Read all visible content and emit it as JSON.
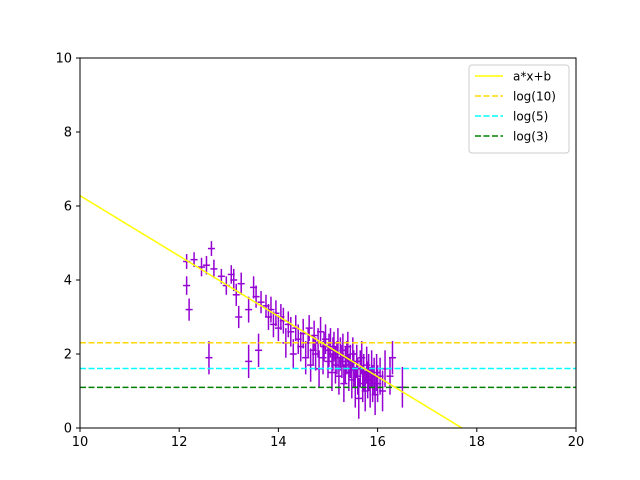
{
  "chart_data": {
    "type": "scatter",
    "title": "",
    "xlabel": "",
    "ylabel": "",
    "xlim": [
      10,
      20
    ],
    "ylim": [
      0,
      10
    ],
    "grid": false,
    "legend_position": "top-right",
    "x_ticks": [
      "10",
      "12",
      "14",
      "16",
      "18",
      "20"
    ],
    "y_ticks": [
      "0",
      "2",
      "4",
      "6",
      "8",
      "10"
    ],
    "series": [
      {
        "name": "a*x+b",
        "kind": "line",
        "style": "solid",
        "color": "#ffff00",
        "x": [
          10,
          17.7
        ],
        "y": [
          6.28,
          0
        ]
      },
      {
        "name": "log(10)",
        "kind": "hline",
        "style": "dashed",
        "color": "#ffd700",
        "y": 2.3026
      },
      {
        "name": "log(5)",
        "kind": "hline",
        "style": "dashed",
        "color": "#00ffff",
        "y": 1.6094
      },
      {
        "name": "log(3)",
        "kind": "hline",
        "style": "dashed",
        "color": "#008000",
        "y": 1.0986
      },
      {
        "kind": "errorbar",
        "color": "#9400d3",
        "points": [
          {
            "x": 12.15,
            "y": 4.5,
            "yerr": 0.2
          },
          {
            "x": 12.15,
            "y": 3.85,
            "yerr": 0.25
          },
          {
            "x": 12.2,
            "y": 3.2,
            "yerr": 0.3
          },
          {
            "x": 12.3,
            "y": 4.55,
            "yerr": 0.2
          },
          {
            "x": 12.45,
            "y": 4.35,
            "yerr": 0.25
          },
          {
            "x": 12.55,
            "y": 4.4,
            "yerr": 0.25
          },
          {
            "x": 12.6,
            "y": 1.9,
            "yerr": 0.45
          },
          {
            "x": 12.65,
            "y": 4.85,
            "yerr": 0.2
          },
          {
            "x": 12.7,
            "y": 4.3,
            "yerr": 0.25
          },
          {
            "x": 12.85,
            "y": 4.1,
            "yerr": 0.2
          },
          {
            "x": 12.95,
            "y": 3.85,
            "yerr": 0.25
          },
          {
            "x": 13.05,
            "y": 4.15,
            "yerr": 0.25
          },
          {
            "x": 13.1,
            "y": 4.0,
            "yerr": 0.3
          },
          {
            "x": 13.15,
            "y": 3.6,
            "yerr": 0.3
          },
          {
            "x": 13.2,
            "y": 3.0,
            "yerr": 0.3
          },
          {
            "x": 13.25,
            "y": 3.9,
            "yerr": 0.3
          },
          {
            "x": 13.4,
            "y": 3.2,
            "yerr": 0.35
          },
          {
            "x": 13.4,
            "y": 1.8,
            "yerr": 0.45
          },
          {
            "x": 13.5,
            "y": 3.8,
            "yerr": 0.3
          },
          {
            "x": 13.55,
            "y": 3.55,
            "yerr": 0.3
          },
          {
            "x": 13.6,
            "y": 2.1,
            "yerr": 0.45
          },
          {
            "x": 13.65,
            "y": 3.4,
            "yerr": 0.3
          },
          {
            "x": 13.75,
            "y": 3.3,
            "yerr": 0.3
          },
          {
            "x": 13.8,
            "y": 3.0,
            "yerr": 0.35
          },
          {
            "x": 13.85,
            "y": 3.2,
            "yerr": 0.35
          },
          {
            "x": 13.9,
            "y": 2.8,
            "yerr": 0.35
          },
          {
            "x": 13.95,
            "y": 3.1,
            "yerr": 0.35
          },
          {
            "x": 14.0,
            "y": 2.7,
            "yerr": 0.35
          },
          {
            "x": 14.05,
            "y": 3.0,
            "yerr": 0.35
          },
          {
            "x": 14.1,
            "y": 2.9,
            "yerr": 0.35
          },
          {
            "x": 14.15,
            "y": 2.3,
            "yerr": 0.4
          },
          {
            "x": 14.2,
            "y": 2.8,
            "yerr": 0.35
          },
          {
            "x": 14.25,
            "y": 2.6,
            "yerr": 0.4
          },
          {
            "x": 14.3,
            "y": 2.0,
            "yerr": 0.4
          },
          {
            "x": 14.35,
            "y": 2.7,
            "yerr": 0.35
          },
          {
            "x": 14.4,
            "y": 2.4,
            "yerr": 0.4
          },
          {
            "x": 14.45,
            "y": 2.2,
            "yerr": 0.4
          },
          {
            "x": 14.5,
            "y": 2.55,
            "yerr": 0.4
          },
          {
            "x": 14.55,
            "y": 1.9,
            "yerr": 0.45
          },
          {
            "x": 14.6,
            "y": 2.3,
            "yerr": 0.4
          },
          {
            "x": 14.62,
            "y": 2.7,
            "yerr": 0.35
          },
          {
            "x": 14.65,
            "y": 1.7,
            "yerr": 0.45
          },
          {
            "x": 14.7,
            "y": 2.1,
            "yerr": 0.4
          },
          {
            "x": 14.72,
            "y": 2.5,
            "yerr": 0.4
          },
          {
            "x": 14.75,
            "y": 2.0,
            "yerr": 0.45
          },
          {
            "x": 14.8,
            "y": 2.3,
            "yerr": 0.4
          },
          {
            "x": 14.82,
            "y": 1.6,
            "yerr": 0.5
          },
          {
            "x": 14.85,
            "y": 2.6,
            "yerr": 0.4
          },
          {
            "x": 14.9,
            "y": 1.9,
            "yerr": 0.45
          },
          {
            "x": 14.92,
            "y": 2.2,
            "yerr": 0.4
          },
          {
            "x": 14.95,
            "y": 2.4,
            "yerr": 0.4
          },
          {
            "x": 15.0,
            "y": 1.8,
            "yerr": 0.45
          },
          {
            "x": 15.02,
            "y": 2.1,
            "yerr": 0.45
          },
          {
            "x": 15.05,
            "y": 2.3,
            "yerr": 0.4
          },
          {
            "x": 15.08,
            "y": 1.5,
            "yerr": 0.5
          },
          {
            "x": 15.1,
            "y": 2.0,
            "yerr": 0.45
          },
          {
            "x": 15.12,
            "y": 2.2,
            "yerr": 0.4
          },
          {
            "x": 15.15,
            "y": 1.7,
            "yerr": 0.5
          },
          {
            "x": 15.18,
            "y": 1.9,
            "yerr": 0.45
          },
          {
            "x": 15.2,
            "y": 2.3,
            "yerr": 0.4
          },
          {
            "x": 15.22,
            "y": 1.4,
            "yerr": 0.5
          },
          {
            "x": 15.25,
            "y": 2.0,
            "yerr": 0.45
          },
          {
            "x": 15.28,
            "y": 1.8,
            "yerr": 0.45
          },
          {
            "x": 15.3,
            "y": 2.1,
            "yerr": 0.45
          },
          {
            "x": 15.32,
            "y": 1.2,
            "yerr": 0.5
          },
          {
            "x": 15.35,
            "y": 1.7,
            "yerr": 0.5
          },
          {
            "x": 15.38,
            "y": 1.9,
            "yerr": 0.45
          },
          {
            "x": 15.4,
            "y": 2.2,
            "yerr": 0.4
          },
          {
            "x": 15.42,
            "y": 1.5,
            "yerr": 0.5
          },
          {
            "x": 15.45,
            "y": 1.8,
            "yerr": 0.45
          },
          {
            "x": 15.48,
            "y": 1.3,
            "yerr": 0.5
          },
          {
            "x": 15.5,
            "y": 2.0,
            "yerr": 0.45
          },
          {
            "x": 15.52,
            "y": 1.6,
            "yerr": 0.5
          },
          {
            "x": 15.55,
            "y": 1.1,
            "yerr": 0.55
          },
          {
            "x": 15.58,
            "y": 1.8,
            "yerr": 0.45
          },
          {
            "x": 15.6,
            "y": 1.4,
            "yerr": 0.5
          },
          {
            "x": 15.62,
            "y": 0.8,
            "yerr": 0.55
          },
          {
            "x": 15.65,
            "y": 1.6,
            "yerr": 0.5
          },
          {
            "x": 15.68,
            "y": 1.9,
            "yerr": 0.45
          },
          {
            "x": 15.7,
            "y": 1.2,
            "yerr": 0.5
          },
          {
            "x": 15.72,
            "y": 1.5,
            "yerr": 0.5
          },
          {
            "x": 15.75,
            "y": 1.0,
            "yerr": 0.55
          },
          {
            "x": 15.78,
            "y": 1.7,
            "yerr": 0.5
          },
          {
            "x": 15.8,
            "y": 1.3,
            "yerr": 0.5
          },
          {
            "x": 15.82,
            "y": 1.5,
            "yerr": 0.5
          },
          {
            "x": 15.85,
            "y": 1.1,
            "yerr": 0.55
          },
          {
            "x": 15.88,
            "y": 1.6,
            "yerr": 0.5
          },
          {
            "x": 15.9,
            "y": 1.2,
            "yerr": 0.5
          },
          {
            "x": 15.93,
            "y": 1.4,
            "yerr": 0.5
          },
          {
            "x": 15.95,
            "y": 0.9,
            "yerr": 0.55
          },
          {
            "x": 15.98,
            "y": 1.5,
            "yerr": 0.5
          },
          {
            "x": 16.0,
            "y": 1.2,
            "yerr": 0.5
          },
          {
            "x": 16.05,
            "y": 1.4,
            "yerr": 0.5
          },
          {
            "x": 16.1,
            "y": 1.0,
            "yerr": 0.55
          },
          {
            "x": 16.15,
            "y": 1.6,
            "yerr": 0.5
          },
          {
            "x": 16.25,
            "y": 1.4,
            "yerr": 0.5
          },
          {
            "x": 16.3,
            "y": 1.9,
            "yerr": 0.45
          },
          {
            "x": 16.5,
            "y": 1.1,
            "yerr": 0.55
          }
        ]
      }
    ]
  }
}
